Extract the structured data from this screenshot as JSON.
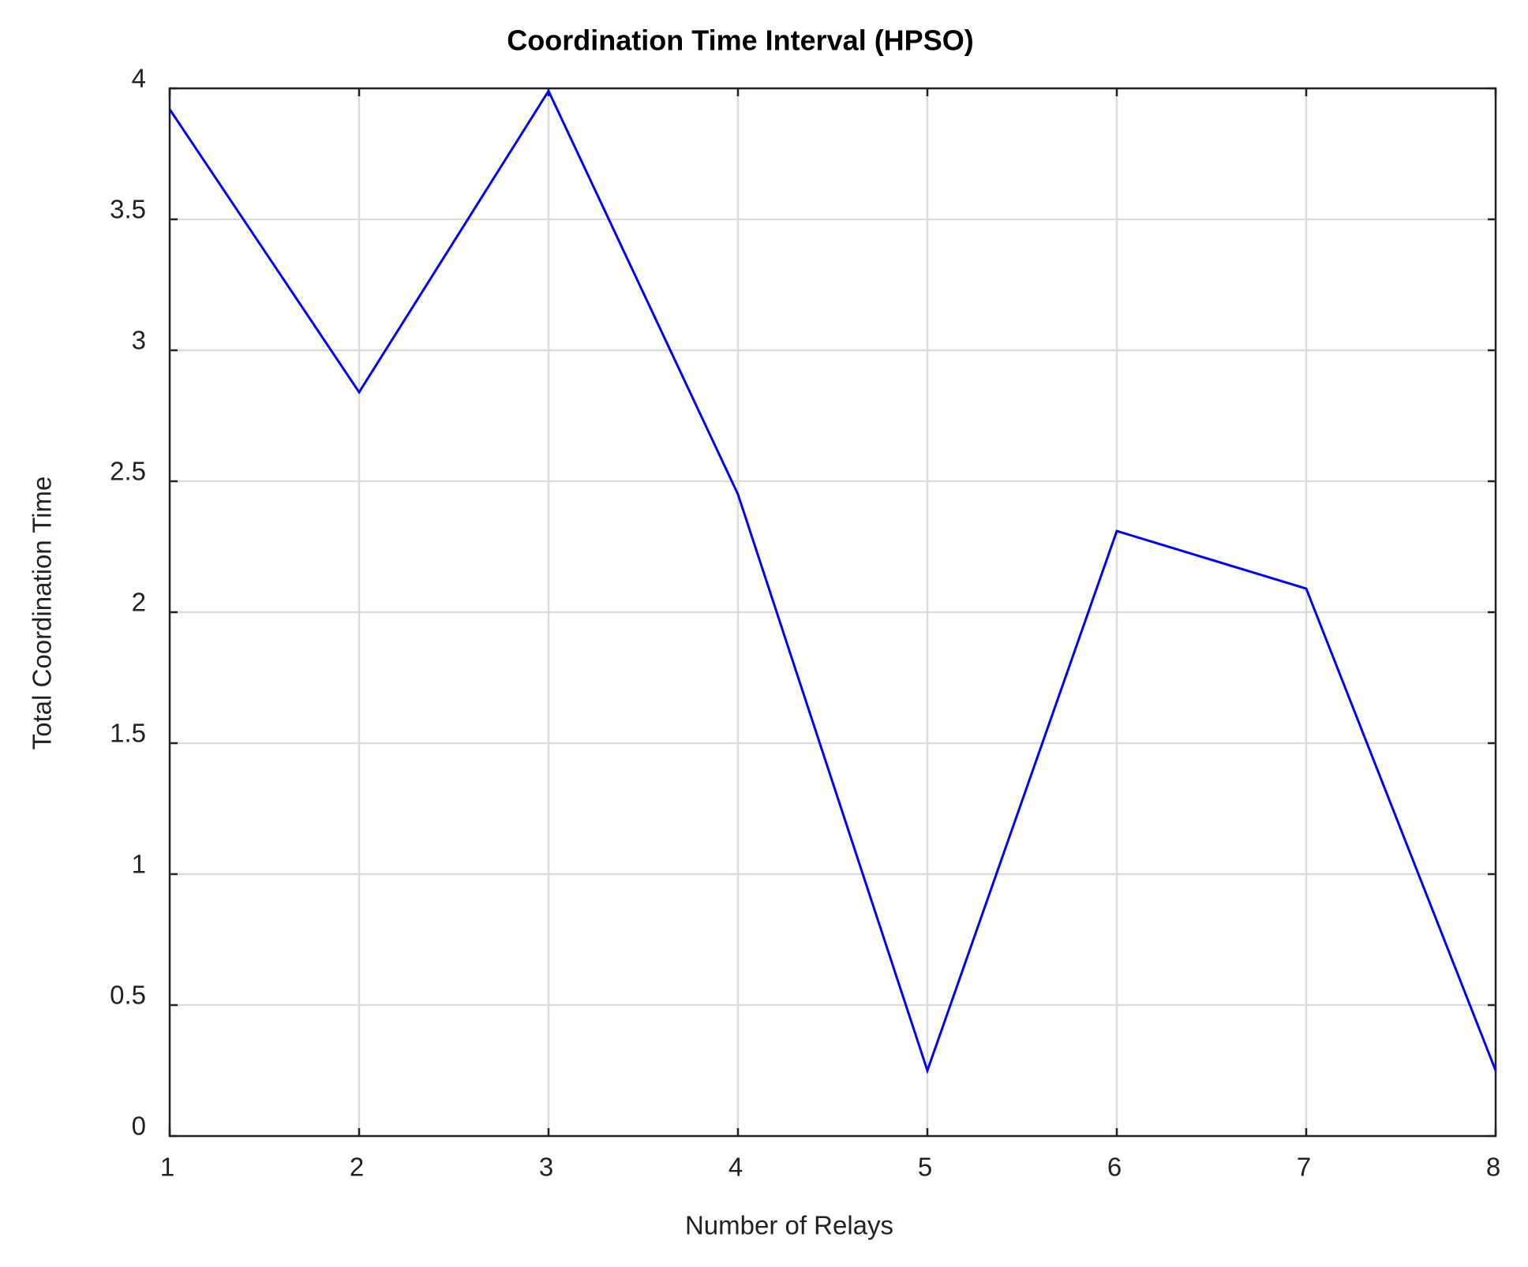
{
  "chart_data": {
    "type": "line",
    "title": "Coordination Time Interval (HPSO)",
    "xlabel": "Number of Relays",
    "ylabel": "Total Coordination Time",
    "x": [
      1,
      2,
      3,
      4,
      5,
      6,
      7,
      8
    ],
    "values": [
      3.92,
      2.84,
      3.99,
      2.45,
      0.25,
      2.31,
      2.09,
      0.25
    ],
    "color": "#0000ff",
    "xlim": [
      1,
      8
    ],
    "xticks": [
      1,
      2,
      3,
      4,
      5,
      6,
      7,
      8
    ],
    "ylim": [
      0,
      4
    ],
    "yticks": [
      0,
      0.5,
      1,
      1.5,
      2,
      2.5,
      3,
      3.5,
      4
    ],
    "grid": true
  }
}
